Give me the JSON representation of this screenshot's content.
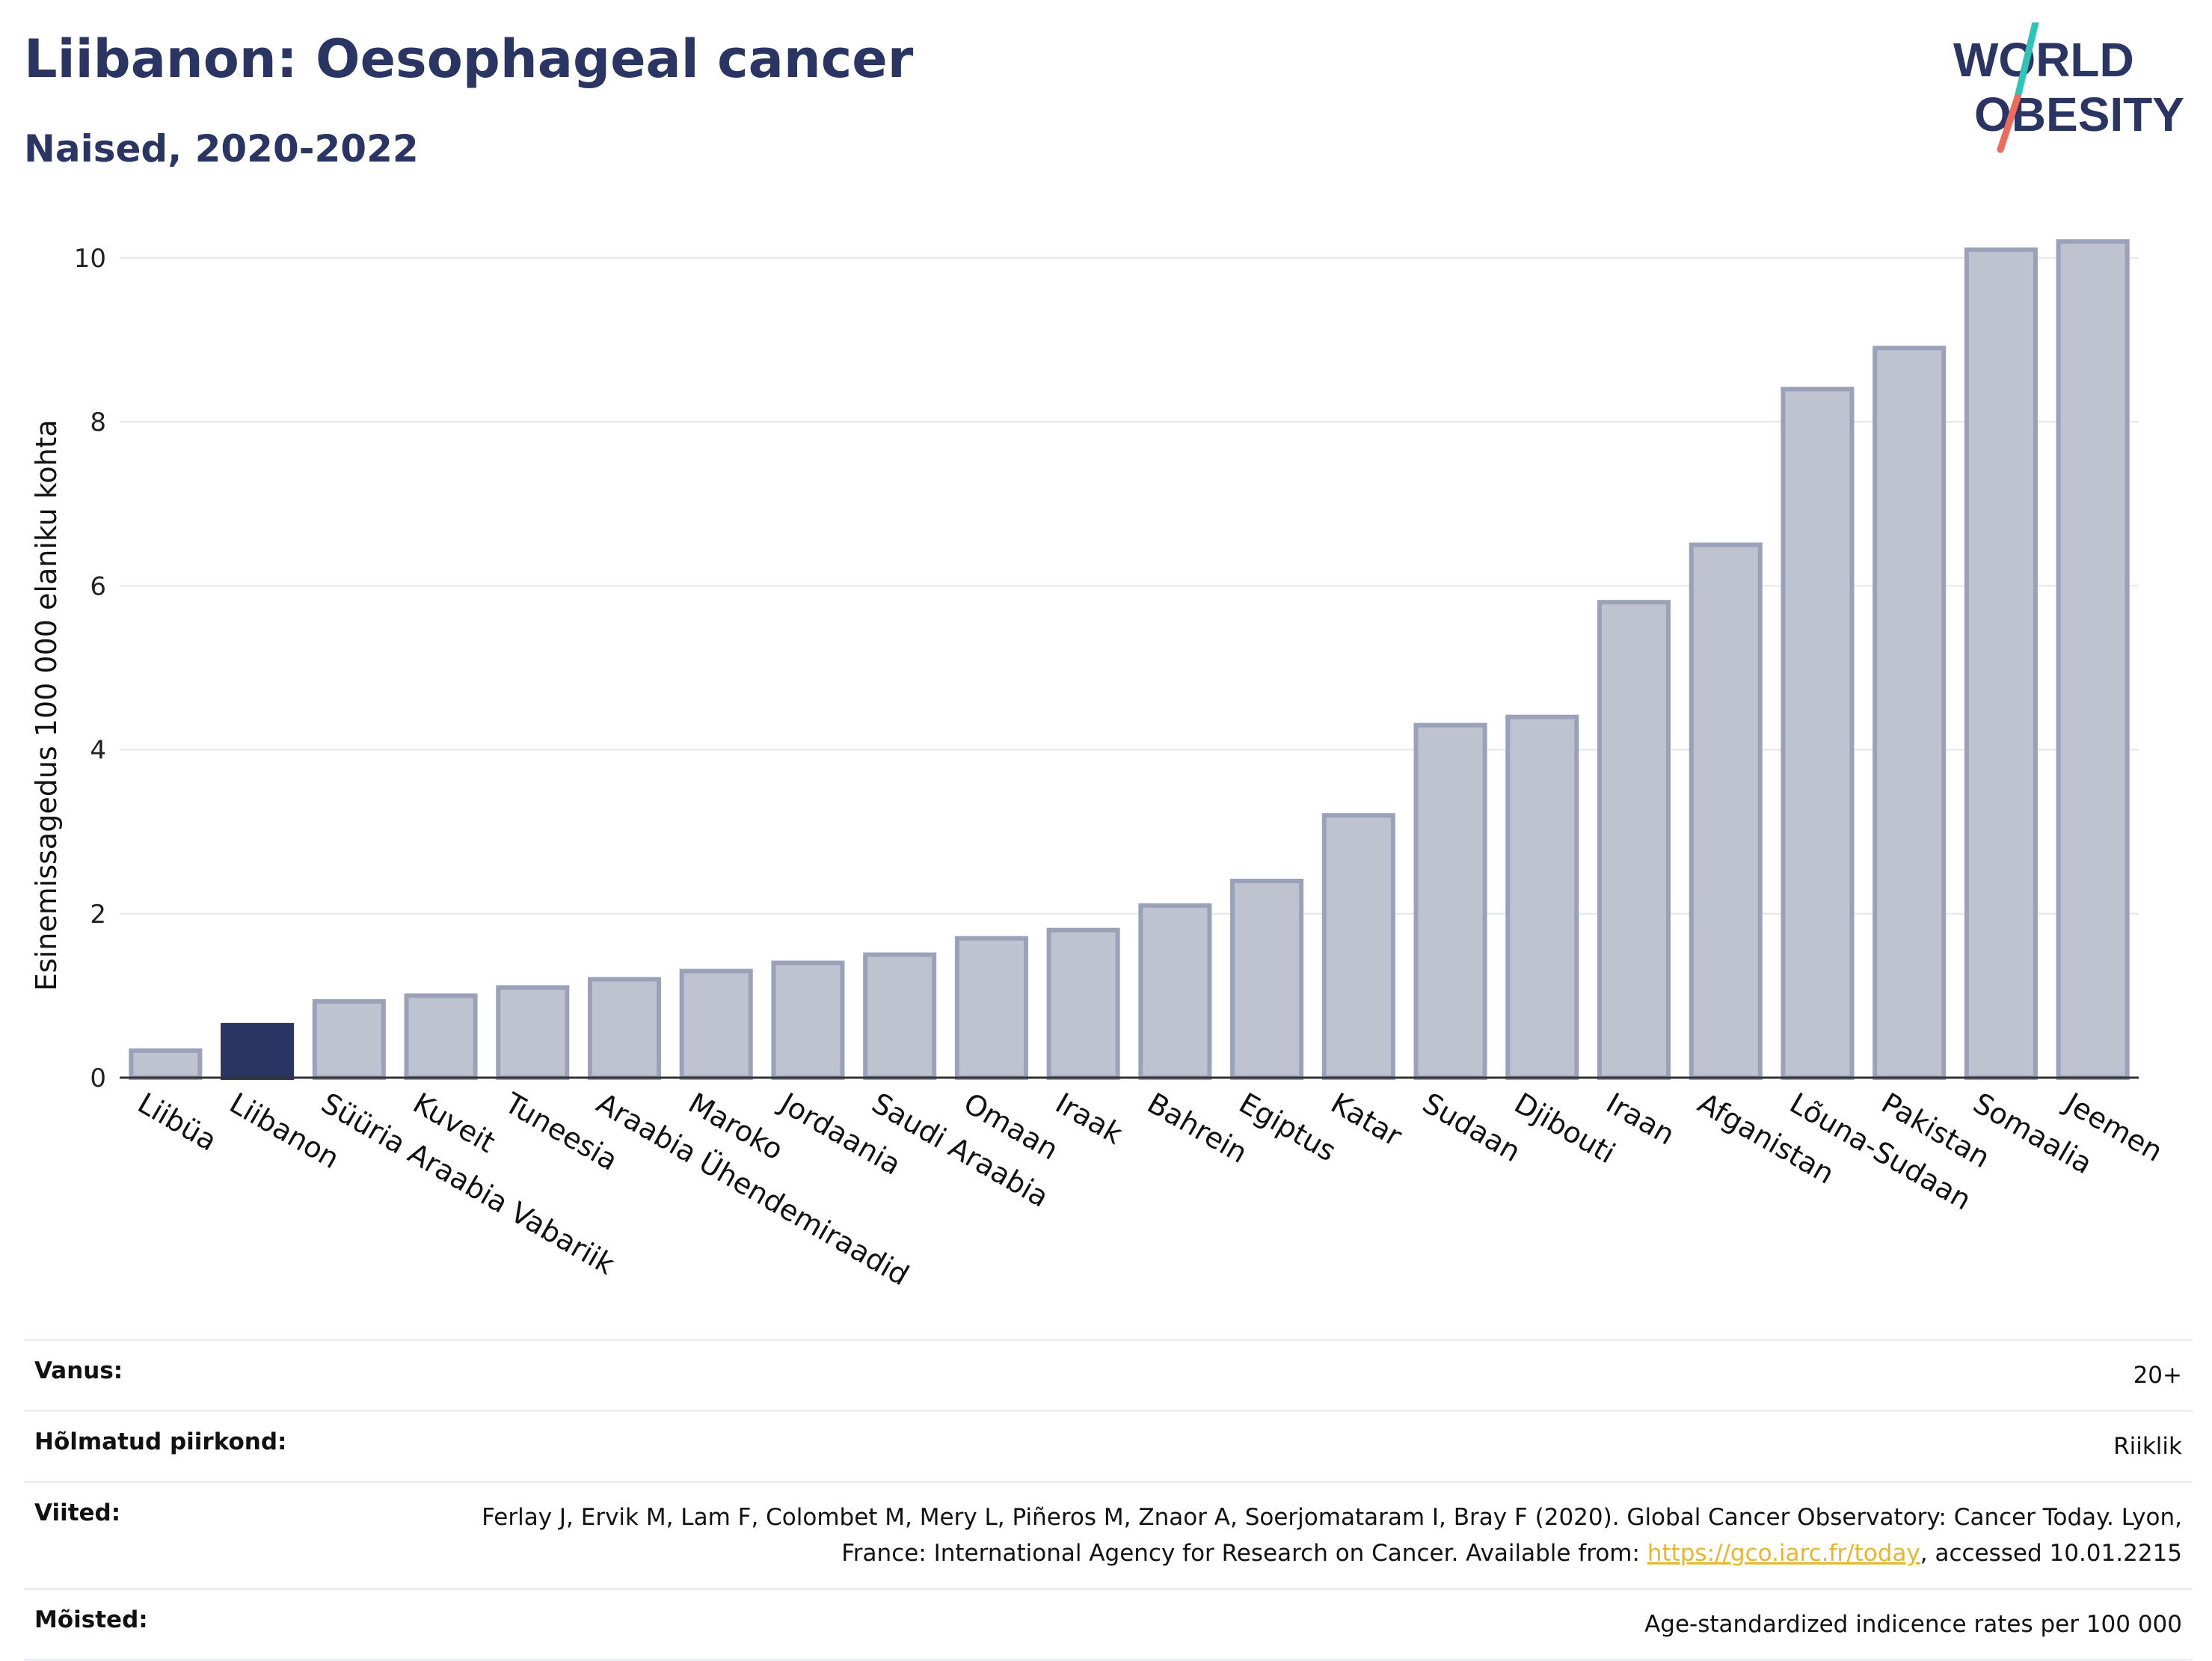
{
  "header": {
    "title": "Liibanon: Oesophageal cancer",
    "subtitle": "Naised, 2020-2022"
  },
  "logo": {
    "line1": "WORLD",
    "line2": "OBESITY",
    "text_color": "#2b3563",
    "slash_colors": [
      "#2ec4b6",
      "#ef6b5b"
    ]
  },
  "colors": {
    "highlight_bar": "#2b3563",
    "bar_fill": "#bfc3d0",
    "bar_stroke": "#9aa1b8",
    "axis": "#333333",
    "grid": "#e6e6e6",
    "link": "#e8b62c"
  },
  "chart_data": {
    "type": "bar",
    "ylabel": "Esinemissagedus 100 000 elaniku kohta",
    "xlabel": "",
    "ylim": [
      0,
      10.5
    ],
    "yticks": [
      0,
      2,
      4,
      6,
      8,
      10
    ],
    "grid": true,
    "highlight": "Liibanon",
    "categories": [
      "Liibüa",
      "Liibanon",
      "Süüria Araabia Vabariik",
      "Kuveit",
      "Tuneesia",
      "Araabia Ühendemiraadid",
      "Maroko",
      "Jordaania",
      "Saudi Araabia",
      "Omaan",
      "Iraak",
      "Bahrein",
      "Egiptus",
      "Katar",
      "Sudaan",
      "Djibouti",
      "Iraan",
      "Afganistan",
      "Lõuna-Sudaan",
      "Pakistan",
      "Somaalia",
      "Jeemen"
    ],
    "values": [
      0.33,
      0.64,
      0.93,
      1.0,
      1.1,
      1.2,
      1.3,
      1.4,
      1.5,
      1.7,
      1.8,
      2.1,
      2.4,
      3.2,
      4.3,
      4.4,
      5.8,
      6.5,
      8.4,
      8.9,
      10.1,
      10.2
    ]
  },
  "info": {
    "rows": [
      {
        "label": "Vanus:",
        "value": "20+"
      },
      {
        "label": "Hõlmatud piirkond:",
        "value": "Riiklik"
      },
      {
        "label": "Viited:",
        "value_before": "Ferlay J, Ervik M, Lam F, Colombet M, Mery L, Piñeros M, Znaor A, Soerjomataram I, Bray F (2020). Global Cancer Observatory: Cancer Today. Lyon, France: International Agency for Research on Cancer. Available from: ",
        "link": "https://gco.iarc.fr/today",
        "value_after": ", accessed 10.01.2215"
      },
      {
        "label": "Mõisted:",
        "value": "Age-standardized indicence rates per 100 000"
      }
    ]
  }
}
